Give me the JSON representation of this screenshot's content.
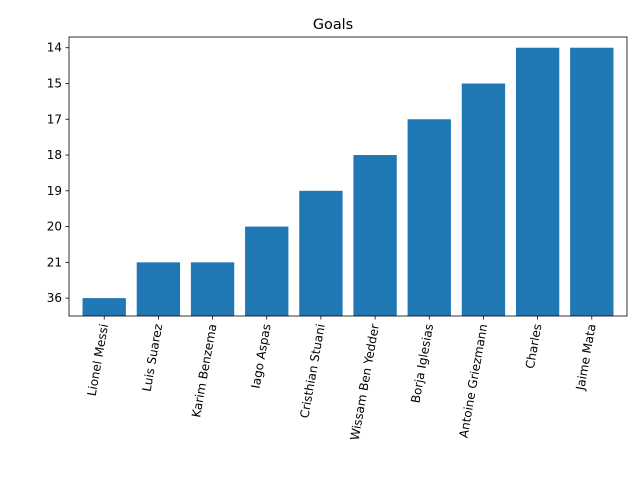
{
  "chart_data": {
    "type": "bar",
    "title": "Goals",
    "xlabel": "",
    "ylabel": "",
    "categories": [
      "Lionel Messi",
      "Luis Suarez",
      "Karim Benzema",
      "Iago Aspas",
      "Cristhian Stuani",
      "Wissam Ben Yedder",
      "Borja Iglesias",
      "Antoine Griezmann",
      "Charles",
      "Jaime Mata"
    ],
    "values": [
      36,
      21,
      21,
      20,
      19,
      18,
      17,
      15,
      14,
      14
    ],
    "y_tick_labels": [
      "36",
      "21",
      "20",
      "19",
      "18",
      "17",
      "15",
      "14"
    ],
    "y_axis_note": "categorical axis in listed order from bottom to top",
    "bar_color": "#1f77b4",
    "grid": false,
    "legend": "none",
    "x_tick_rotation_deg": 80
  }
}
